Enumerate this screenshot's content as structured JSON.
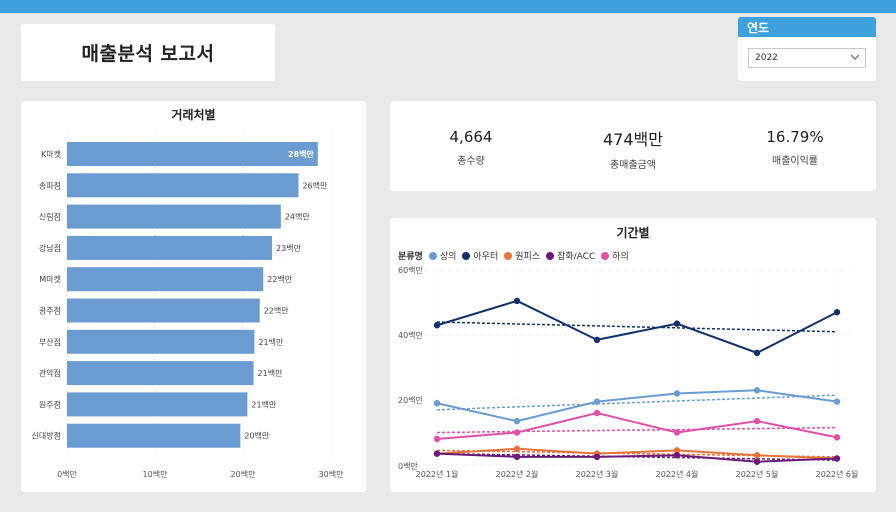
{
  "report": {
    "title": "매출분석 보고서"
  },
  "slicer": {
    "label": "연도",
    "selected": "2022"
  },
  "kpis": [
    {
      "value": "4,664",
      "label": "총수량"
    },
    {
      "value": "474백만",
      "label": "총매출금액"
    },
    {
      "value": "16.79%",
      "label": "매출이익률"
    }
  ],
  "chart_data": [
    {
      "type": "bar",
      "orientation": "horizontal",
      "title": "거래처별",
      "categories": [
        "K마켓",
        "송파점",
        "신림점",
        "강남점",
        "M마켓",
        "광주점",
        "부산점",
        "관악점",
        "원주점",
        "신대방점"
      ],
      "values": [
        28.5,
        26.3,
        24.3,
        23.3,
        22.3,
        21.9,
        21.3,
        21.2,
        20.5,
        19.7
      ],
      "data_labels": [
        "28백만",
        "26백만",
        "24백만",
        "23백만",
        "22백만",
        "22백만",
        "21백만",
        "21백만",
        "21백만",
        "20백만"
      ],
      "xlim": [
        0,
        30
      ],
      "xticks": [
        "0백만",
        "10백만",
        "20백만",
        "30백만"
      ],
      "color": "#6a9bd1"
    },
    {
      "type": "line",
      "title": "기간별",
      "legend_title": "분류명",
      "x": [
        "2022년 1월",
        "2022년 2월",
        "2022년 3월",
        "2022년 4월",
        "2022년 5월",
        "2022년 6월"
      ],
      "ylim": [
        0,
        60
      ],
      "yticks": [
        "0백만",
        "20백만",
        "40백만",
        "60백만"
      ],
      "ytick_values": [
        0,
        20,
        40,
        60
      ],
      "series": [
        {
          "name": "상의",
          "color": "#6a9bd1",
          "values": [
            19,
            13.5,
            19.5,
            22,
            23,
            19.5
          ],
          "trend": [
            17,
            21.5
          ]
        },
        {
          "name": "아우터",
          "color": "#11306b",
          "values": [
            43,
            50.5,
            38.5,
            43.5,
            34.5,
            47
          ],
          "trend": [
            44,
            41
          ]
        },
        {
          "name": "원피스",
          "color": "#e8733a",
          "values": [
            3.5,
            5,
            3.5,
            4.5,
            3,
            2
          ],
          "trend": [
            4.5,
            2.5
          ]
        },
        {
          "name": "잡화/ACC",
          "color": "#6b1a7a",
          "values": [
            3.5,
            2.5,
            2.5,
            3,
            1,
            2
          ],
          "trend": [
            3.5,
            1.5
          ]
        },
        {
          "name": "하의",
          "color": "#e04fa8",
          "values": [
            8,
            10,
            16,
            10,
            13.5,
            8.5
          ],
          "trend": [
            10,
            11.5
          ]
        }
      ]
    }
  ]
}
